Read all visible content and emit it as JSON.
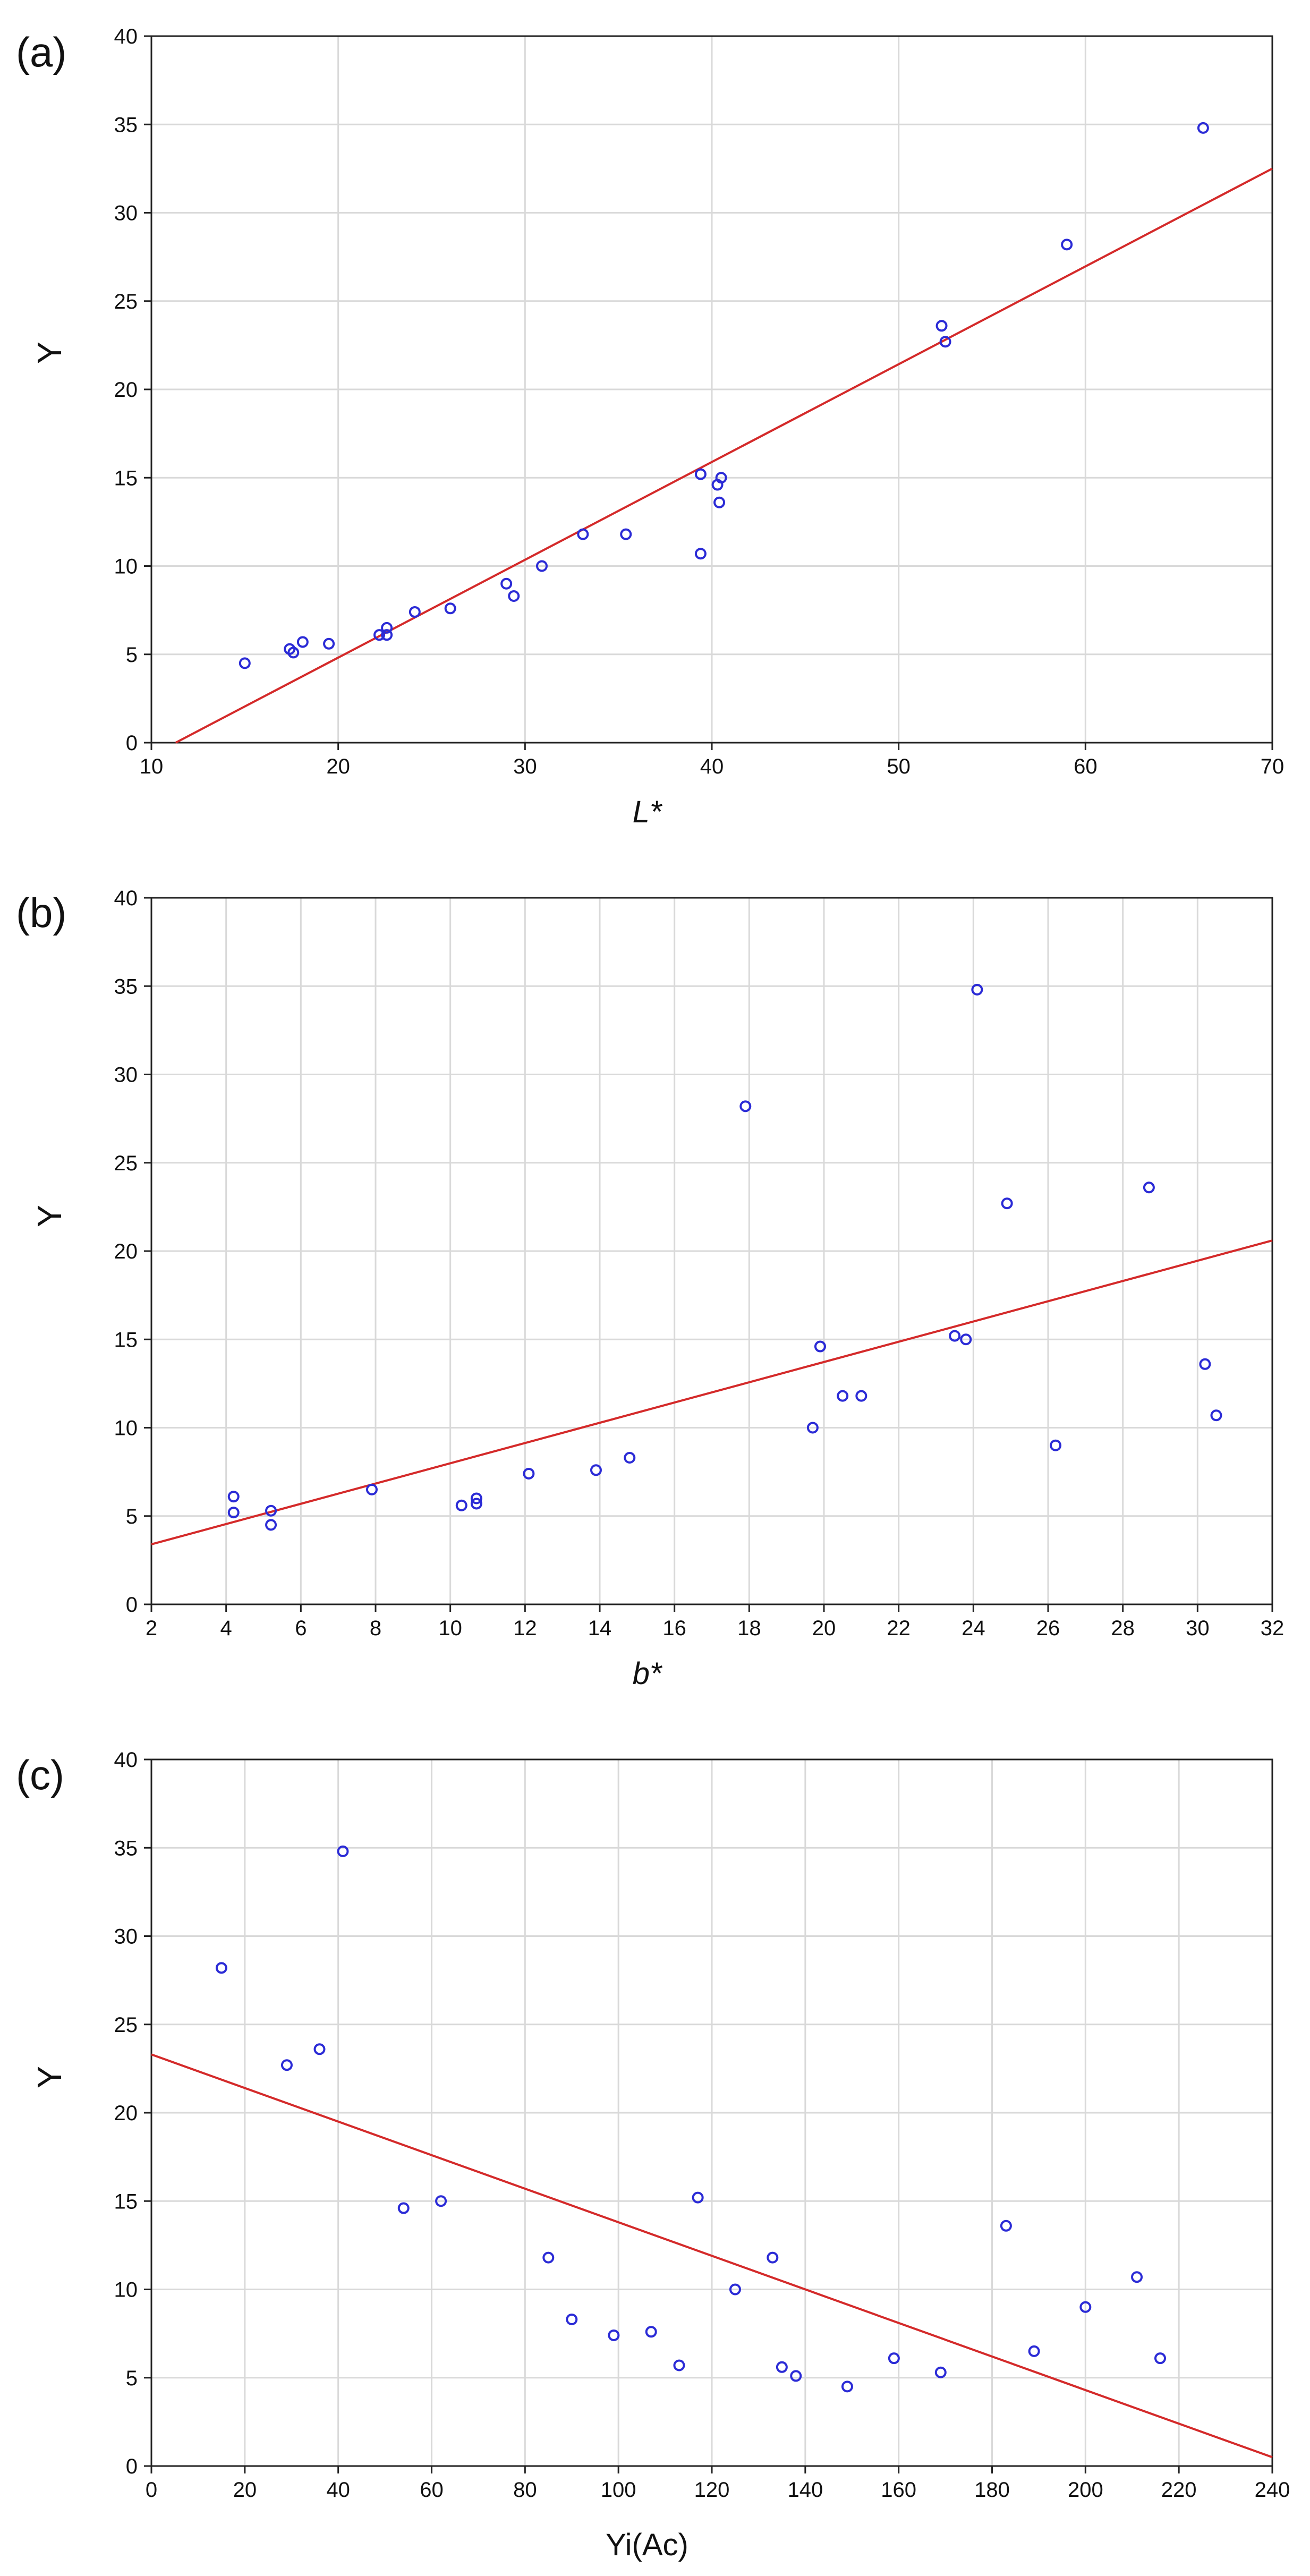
{
  "chart_data": [
    {
      "panel_label": "(a)",
      "type": "scatter",
      "xlabel": "L*",
      "xlabel_italic": true,
      "ylabel": "Y",
      "xlim": [
        10,
        70
      ],
      "ylim": [
        0,
        40
      ],
      "xticks": [
        10,
        20,
        30,
        40,
        50,
        60,
        70
      ],
      "yticks": [
        0,
        5,
        10,
        15,
        20,
        25,
        30,
        35,
        40
      ],
      "grid": true,
      "colors": {
        "points": "#2b2bd6",
        "fit_line": "#d42a2a",
        "grid": "#d9d9d9"
      },
      "points": [
        [
          15.0,
          4.5
        ],
        [
          17.4,
          5.3
        ],
        [
          17.6,
          5.1
        ],
        [
          18.1,
          5.7
        ],
        [
          19.5,
          5.6
        ],
        [
          22.2,
          6.1
        ],
        [
          22.6,
          6.1
        ],
        [
          22.6,
          6.5
        ],
        [
          24.1,
          7.4
        ],
        [
          26.0,
          7.6
        ],
        [
          29.0,
          9.0
        ],
        [
          29.4,
          8.3
        ],
        [
          30.9,
          10.0
        ],
        [
          33.1,
          11.8
        ],
        [
          35.4,
          11.8
        ],
        [
          39.4,
          10.7
        ],
        [
          39.4,
          15.2
        ],
        [
          40.3,
          14.6
        ],
        [
          40.5,
          15.0
        ],
        [
          40.4,
          13.6
        ],
        [
          52.3,
          23.6
        ],
        [
          52.5,
          22.7
        ],
        [
          59.0,
          28.2
        ],
        [
          66.3,
          34.8
        ]
      ],
      "fit_line": [
        [
          11.3,
          0.0
        ],
        [
          70.0,
          32.5
        ]
      ]
    },
    {
      "panel_label": "(b)",
      "type": "scatter",
      "xlabel": "b*",
      "xlabel_italic": true,
      "ylabel": "Y",
      "xlim": [
        2,
        32
      ],
      "ylim": [
        0,
        40
      ],
      "xticks": [
        2,
        4,
        6,
        8,
        10,
        12,
        14,
        16,
        18,
        20,
        22,
        24,
        26,
        28,
        30,
        32
      ],
      "yticks": [
        0,
        5,
        10,
        15,
        20,
        25,
        30,
        35,
        40
      ],
      "grid": true,
      "colors": {
        "points": "#2b2bd6",
        "fit_line": "#d42a2a",
        "grid": "#d9d9d9"
      },
      "points": [
        [
          4.2,
          6.1
        ],
        [
          4.2,
          5.2
        ],
        [
          5.2,
          5.3
        ],
        [
          5.2,
          4.5
        ],
        [
          7.9,
          6.5
        ],
        [
          10.3,
          5.6
        ],
        [
          10.7,
          6.0
        ],
        [
          10.7,
          5.7
        ],
        [
          12.1,
          7.4
        ],
        [
          13.9,
          7.6
        ],
        [
          14.8,
          8.3
        ],
        [
          17.9,
          28.2
        ],
        [
          19.7,
          10.0
        ],
        [
          19.9,
          14.6
        ],
        [
          20.5,
          11.8
        ],
        [
          21.0,
          11.8
        ],
        [
          23.5,
          15.2
        ],
        [
          23.8,
          15.0
        ],
        [
          24.1,
          34.8
        ],
        [
          24.9,
          22.7
        ],
        [
          26.2,
          9.0
        ],
        [
          28.7,
          23.6
        ],
        [
          30.2,
          13.6
        ],
        [
          30.5,
          10.7
        ]
      ],
      "fit_line": [
        [
          2.0,
          3.4
        ],
        [
          32.0,
          20.6
        ]
      ]
    },
    {
      "panel_label": "(c)",
      "type": "scatter",
      "xlabel": "Yi(Ac)",
      "xlabel_italic": false,
      "ylabel": "Y",
      "xlim": [
        0,
        240
      ],
      "ylim": [
        0,
        40
      ],
      "xticks": [
        0,
        20,
        40,
        60,
        80,
        100,
        120,
        140,
        160,
        180,
        200,
        220,
        240
      ],
      "yticks": [
        0,
        5,
        10,
        15,
        20,
        25,
        30,
        35,
        40
      ],
      "grid": true,
      "colors": {
        "points": "#2b2bd6",
        "fit_line": "#d42a2a",
        "grid": "#d9d9d9"
      },
      "points": [
        [
          15,
          28.2
        ],
        [
          29,
          22.7
        ],
        [
          36,
          23.6
        ],
        [
          41,
          34.8
        ],
        [
          54,
          14.6
        ],
        [
          62,
          15.0
        ],
        [
          85,
          11.8
        ],
        [
          90,
          8.3
        ],
        [
          99,
          7.4
        ],
        [
          107,
          7.6
        ],
        [
          113,
          5.7
        ],
        [
          117,
          15.2
        ],
        [
          125,
          10.0
        ],
        [
          133,
          11.8
        ],
        [
          135,
          5.6
        ],
        [
          138,
          5.1
        ],
        [
          149,
          4.5
        ],
        [
          159,
          6.1
        ],
        [
          169,
          5.3
        ],
        [
          183,
          13.6
        ],
        [
          189,
          6.5
        ],
        [
          200,
          9.0
        ],
        [
          211,
          10.7
        ],
        [
          216,
          6.1
        ]
      ],
      "fit_line": [
        [
          0,
          23.3
        ],
        [
          240,
          0.5
        ]
      ]
    }
  ]
}
